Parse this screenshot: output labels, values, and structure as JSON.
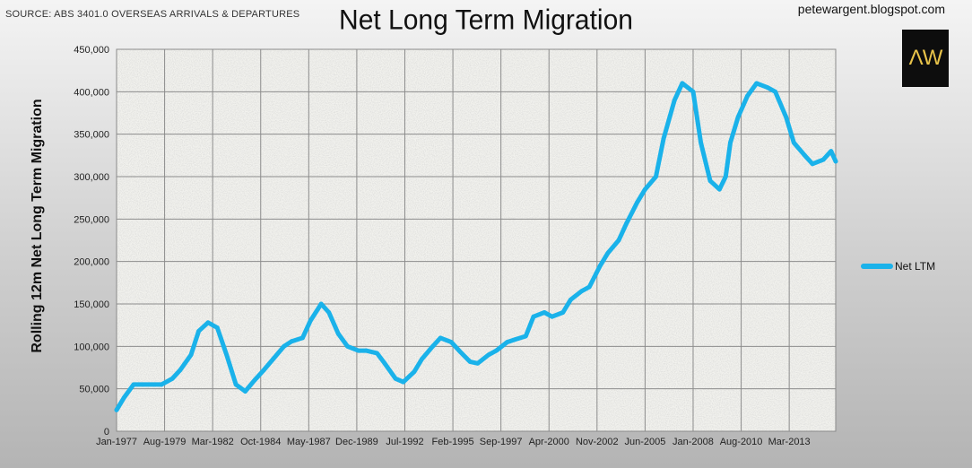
{
  "header": {
    "source": "SOURCE: ABS 3401.0 OVERSEAS ARRIVALS & DEPARTURES",
    "title": "Net Long Term Migration",
    "site": "petewargent.blogspot.com",
    "logo_text": "ΛW"
  },
  "colors": {
    "series": "#1ab2ea",
    "logo_bg": "#0d0d0d",
    "logo_fg": "#e8c34a"
  },
  "chart_data": {
    "type": "line",
    "title": "Net Long Term Migration",
    "ylabel": "Rolling 12m Net Long Term Migration",
    "xlabel": "",
    "ylim": [
      0,
      450000
    ],
    "yticks": [
      0,
      50000,
      100000,
      150000,
      200000,
      250000,
      300000,
      350000,
      400000,
      450000
    ],
    "ytick_labels": [
      "0",
      "50,000",
      "100,000",
      "150,000",
      "200,000",
      "250,000",
      "300,000",
      "350,000",
      "400,000",
      "450,000"
    ],
    "xlim": [
      "1977-01",
      "2015-09"
    ],
    "xtick_labels": [
      "Jan-1977",
      "Aug-1979",
      "Mar-1982",
      "Oct-1984",
      "May-1987",
      "Dec-1989",
      "Jul-1992",
      "Feb-1995",
      "Sep-1997",
      "Apr-2000",
      "Nov-2002",
      "Jun-2005",
      "Jan-2008",
      "Aug-2010",
      "Mar-2013"
    ],
    "xtick_dates": [
      "1977-01",
      "1979-08",
      "1982-03",
      "1984-10",
      "1987-05",
      "1989-12",
      "1992-07",
      "1995-02",
      "1997-09",
      "2000-04",
      "2002-11",
      "2005-06",
      "2008-01",
      "2010-08",
      "2013-03"
    ],
    "grid": true,
    "legend_position": "right",
    "series": [
      {
        "name": "Net LTM",
        "color": "#1ab2ea",
        "x": [
          "1977-01",
          "1977-06",
          "1977-12",
          "1978-06",
          "1979-01",
          "1979-06",
          "1980-01",
          "1980-06",
          "1981-01",
          "1981-06",
          "1981-12",
          "1982-06",
          "1982-12",
          "1983-06",
          "1983-12",
          "1984-06",
          "1984-12",
          "1985-06",
          "1986-01",
          "1986-06",
          "1987-01",
          "1987-06",
          "1988-01",
          "1988-06",
          "1988-12",
          "1989-06",
          "1990-01",
          "1990-06",
          "1991-01",
          "1991-06",
          "1992-01",
          "1992-06",
          "1993-01",
          "1993-06",
          "1994-01",
          "1994-06",
          "1995-01",
          "1995-06",
          "1996-01",
          "1996-06",
          "1997-01",
          "1997-06",
          "1998-01",
          "1998-06",
          "1999-01",
          "1999-06",
          "2000-01",
          "2000-06",
          "2001-01",
          "2001-06",
          "2002-01",
          "2002-06",
          "2003-01",
          "2003-06",
          "2004-01",
          "2004-06",
          "2005-01",
          "2005-06",
          "2006-01",
          "2006-06",
          "2007-01",
          "2007-06",
          "2008-01",
          "2008-06",
          "2008-12",
          "2009-06",
          "2009-10",
          "2010-01",
          "2010-06",
          "2010-12",
          "2011-06",
          "2012-01",
          "2012-06",
          "2013-01",
          "2013-06",
          "2014-01",
          "2014-06",
          "2015-01",
          "2015-06",
          "2015-09"
        ],
        "y": [
          25000,
          40000,
          55000,
          55000,
          55000,
          55000,
          62000,
          72000,
          90000,
          118000,
          128000,
          122000,
          90000,
          55000,
          47000,
          60000,
          72000,
          85000,
          100000,
          106000,
          110000,
          130000,
          150000,
          140000,
          115000,
          100000,
          95000,
          95000,
          92000,
          80000,
          62000,
          58000,
          70000,
          85000,
          100000,
          110000,
          105000,
          95000,
          82000,
          80000,
          90000,
          95000,
          105000,
          108000,
          112000,
          135000,
          140000,
          135000,
          140000,
          155000,
          165000,
          170000,
          195000,
          210000,
          225000,
          245000,
          270000,
          285000,
          300000,
          345000,
          390000,
          410000,
          400000,
          340000,
          295000,
          285000,
          300000,
          340000,
          370000,
          395000,
          410000,
          405000,
          400000,
          370000,
          340000,
          325000,
          315000,
          320000,
          330000,
          318000
        ]
      }
    ]
  }
}
